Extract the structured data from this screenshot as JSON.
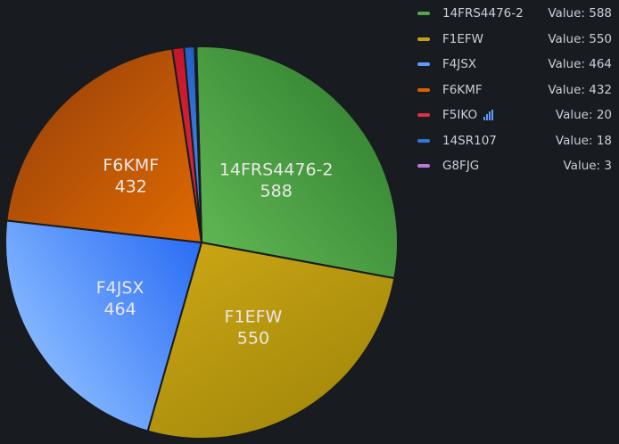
{
  "chart_data": {
    "type": "pie",
    "legend_position": "right",
    "series": [
      {
        "name": "14FRS4476-2",
        "value": 588,
        "color": "#56a64b",
        "color_hi": "#5fb552",
        "color_lo": "#3a8a36"
      },
      {
        "name": "F1EFW",
        "value": 550,
        "color": "#c4a114",
        "color_hi": "#c9a414",
        "color_lo": "#a88c0c"
      },
      {
        "name": "F4JSX",
        "value": 464,
        "color": "#5b9bff",
        "color_hi": "#2a6cf4",
        "color_lo": "#82b5ff"
      },
      {
        "name": "F6KMF",
        "value": 432,
        "color": "#d95f00",
        "color_hi": "#e06a00",
        "color_lo": "#a84a08"
      },
      {
        "name": "F5IKO",
        "value": 20,
        "color": "#e02f44",
        "color_hi": "#e02f44",
        "color_lo": "#c4162a",
        "has_extra_icon": true,
        "extra_icon": "signal-bars-icon"
      },
      {
        "name": "14SR107",
        "value": 18,
        "color": "#3274d9",
        "color_hi": "#5794f2",
        "color_lo": "#1f60c4"
      },
      {
        "name": "G8FJG",
        "value": 3,
        "color": "#b877d9",
        "color_hi": "#b877d9",
        "color_lo": "#a352cc"
      }
    ],
    "legend_value_prefix": "Value: ",
    "slice_label_min": 100
  }
}
